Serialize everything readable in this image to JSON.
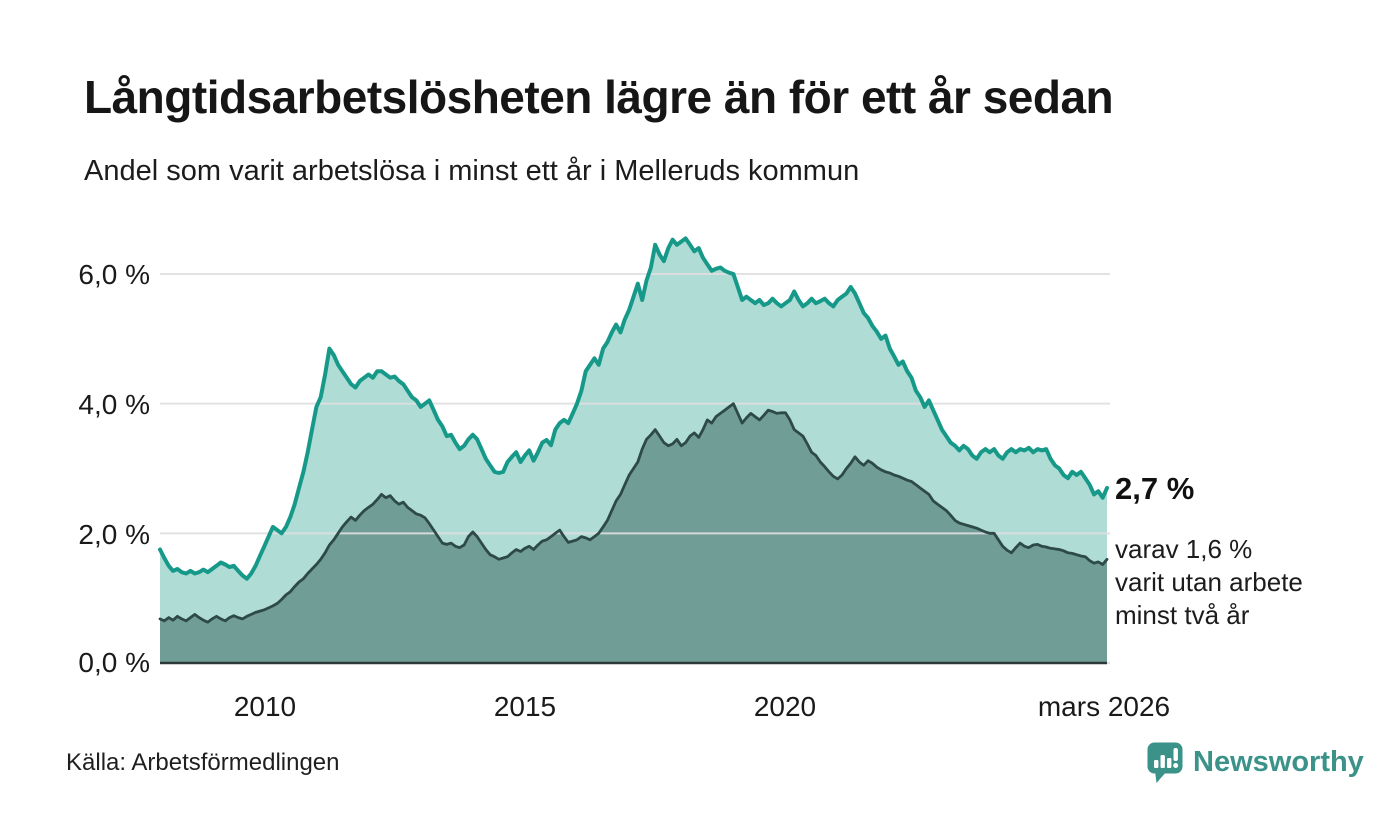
{
  "header": {
    "title": "Långtidsarbetslösheten lägre än för ett år sedan",
    "subtitle": "Andel som varit arbetslösa i minst ett år i Melleruds kommun"
  },
  "annotation": {
    "value_bold": "2,7 %",
    "lines": [
      "varav 1,6 %",
      "varit utan arbete",
      "minst två år"
    ]
  },
  "footer": {
    "source": "Källa: Arbetsförmedlingen",
    "brand_label": "Newsworthy"
  },
  "colors": {
    "brand_teal": "#3a9289",
    "grid": "#dfdfdf",
    "axis": "#2b3a38",
    "text": "#161616"
  },
  "chart_data": {
    "type": "area",
    "title": "Långtidsarbetslösheten lägre än för ett år sedan",
    "subtitle": "Andel som varit arbetslösa i minst ett år i Melleruds kommun",
    "x_unit": "månad",
    "x_range": [
      "2008-01",
      "2026-03"
    ],
    "x_tick_labels": [
      "2010",
      "2015",
      "2020",
      "mars 2026"
    ],
    "y_tick_labels": [
      "0,0 %",
      "2,0 %",
      "4,0 %",
      "6,0 %"
    ],
    "y_ticks": [
      0,
      2,
      4,
      6
    ],
    "ylim": [
      0,
      6.7
    ],
    "grid": true,
    "legend_position": "none (värden annoterade vid linjens slut)",
    "latest": {
      "minst_ett_ar": "2,7 %",
      "minst_tva_ar": "1,6 %"
    },
    "series": [
      {
        "name": "Arbetslösa minst ett år",
        "color": "#17998a",
        "fill": "#afdcd5",
        "stroke_width": 4,
        "end_value": 2.7,
        "values": [
          1.75,
          1.62,
          1.5,
          1.42,
          1.45,
          1.4,
          1.38,
          1.42,
          1.38,
          1.4,
          1.44,
          1.4,
          1.45,
          1.5,
          1.55,
          1.52,
          1.48,
          1.5,
          1.42,
          1.35,
          1.3,
          1.38,
          1.5,
          1.65,
          1.8,
          1.95,
          2.1,
          2.05,
          2.0,
          2.1,
          2.25,
          2.45,
          2.7,
          2.95,
          3.25,
          3.6,
          3.95,
          4.1,
          4.45,
          4.85,
          4.75,
          4.6,
          4.5,
          4.4,
          4.3,
          4.25,
          4.35,
          4.4,
          4.45,
          4.4,
          4.5,
          4.5,
          4.45,
          4.4,
          4.42,
          4.35,
          4.3,
          4.2,
          4.1,
          4.05,
          3.95,
          4.0,
          4.05,
          3.9,
          3.75,
          3.65,
          3.5,
          3.52,
          3.4,
          3.3,
          3.35,
          3.45,
          3.52,
          3.45,
          3.3,
          3.15,
          3.05,
          2.95,
          2.93,
          2.95,
          3.1,
          3.18,
          3.25,
          3.1,
          3.2,
          3.28,
          3.12,
          3.25,
          3.4,
          3.44,
          3.36,
          3.6,
          3.7,
          3.75,
          3.7,
          3.85,
          4.0,
          4.2,
          4.5,
          4.6,
          4.7,
          4.6,
          4.85,
          4.95,
          5.1,
          5.22,
          5.1,
          5.3,
          5.45,
          5.65,
          5.85,
          5.6,
          5.9,
          6.1,
          6.45,
          6.3,
          6.2,
          6.4,
          6.53,
          6.45,
          6.5,
          6.55,
          6.45,
          6.35,
          6.4,
          6.25,
          6.15,
          6.05,
          6.08,
          6.1,
          6.05,
          6.02,
          6.0,
          5.8,
          5.6,
          5.65,
          5.6,
          5.55,
          5.6,
          5.52,
          5.55,
          5.62,
          5.55,
          5.5,
          5.55,
          5.6,
          5.73,
          5.6,
          5.5,
          5.55,
          5.62,
          5.55,
          5.58,
          5.62,
          5.55,
          5.5,
          5.6,
          5.65,
          5.7,
          5.8,
          5.7,
          5.55,
          5.4,
          5.32,
          5.2,
          5.11,
          5.0,
          5.05,
          4.85,
          4.73,
          4.6,
          4.65,
          4.5,
          4.4,
          4.2,
          4.1,
          3.95,
          4.05,
          3.9,
          3.75,
          3.6,
          3.5,
          3.4,
          3.35,
          3.28,
          3.35,
          3.3,
          3.2,
          3.15,
          3.25,
          3.3,
          3.25,
          3.3,
          3.2,
          3.15,
          3.25,
          3.3,
          3.25,
          3.3,
          3.28,
          3.32,
          3.25,
          3.3,
          3.28,
          3.3,
          3.15,
          3.05,
          3.0,
          2.9,
          2.85,
          2.95,
          2.9,
          2.95,
          2.85,
          2.75,
          2.6,
          2.65,
          2.55,
          2.7
        ]
      },
      {
        "name": "Arbetslösa minst två år",
        "color": "#2e4a48",
        "fill": "#719d97",
        "stroke_width": 2.8,
        "end_value": 1.6,
        "values": [
          0.68,
          0.65,
          0.7,
          0.66,
          0.72,
          0.68,
          0.65,
          0.7,
          0.75,
          0.7,
          0.66,
          0.63,
          0.68,
          0.72,
          0.68,
          0.65,
          0.7,
          0.73,
          0.7,
          0.68,
          0.72,
          0.75,
          0.78,
          0.8,
          0.82,
          0.85,
          0.88,
          0.92,
          0.98,
          1.05,
          1.1,
          1.18,
          1.25,
          1.3,
          1.38,
          1.45,
          1.52,
          1.6,
          1.7,
          1.82,
          1.9,
          2.0,
          2.1,
          2.18,
          2.25,
          2.2,
          2.28,
          2.35,
          2.4,
          2.45,
          2.52,
          2.6,
          2.55,
          2.58,
          2.5,
          2.45,
          2.48,
          2.4,
          2.35,
          2.3,
          2.28,
          2.24,
          2.15,
          2.05,
          1.95,
          1.85,
          1.83,
          1.85,
          1.8,
          1.78,
          1.82,
          1.95,
          2.02,
          1.95,
          1.85,
          1.75,
          1.67,
          1.64,
          1.6,
          1.62,
          1.64,
          1.7,
          1.75,
          1.72,
          1.77,
          1.8,
          1.75,
          1.82,
          1.88,
          1.9,
          1.95,
          2.0,
          2.05,
          1.95,
          1.86,
          1.88,
          1.9,
          1.95,
          1.93,
          1.9,
          1.95,
          2.0,
          2.1,
          2.2,
          2.35,
          2.5,
          2.6,
          2.75,
          2.9,
          3.0,
          3.1,
          3.3,
          3.45,
          3.52,
          3.6,
          3.5,
          3.4,
          3.35,
          3.38,
          3.45,
          3.35,
          3.4,
          3.5,
          3.55,
          3.48,
          3.6,
          3.75,
          3.7,
          3.8,
          3.85,
          3.9,
          3.95,
          4.0,
          3.85,
          3.7,
          3.78,
          3.85,
          3.8,
          3.75,
          3.82,
          3.9,
          3.88,
          3.85,
          3.86,
          3.86,
          3.75,
          3.6,
          3.55,
          3.5,
          3.38,
          3.25,
          3.2,
          3.1,
          3.03,
          2.95,
          2.88,
          2.84,
          2.9,
          3.0,
          3.08,
          3.18,
          3.1,
          3.05,
          3.12,
          3.08,
          3.02,
          2.98,
          2.95,
          2.93,
          2.9,
          2.88,
          2.85,
          2.82,
          2.8,
          2.75,
          2.7,
          2.65,
          2.6,
          2.5,
          2.45,
          2.4,
          2.35,
          2.28,
          2.2,
          2.16,
          2.14,
          2.12,
          2.1,
          2.08,
          2.05,
          2.02,
          2.0,
          2.0,
          1.9,
          1.8,
          1.74,
          1.7,
          1.78,
          1.85,
          1.8,
          1.78,
          1.82,
          1.83,
          1.8,
          1.79,
          1.77,
          1.76,
          1.75,
          1.73,
          1.7,
          1.69,
          1.67,
          1.65,
          1.64,
          1.58,
          1.54,
          1.56,
          1.52,
          1.6
        ]
      }
    ]
  }
}
